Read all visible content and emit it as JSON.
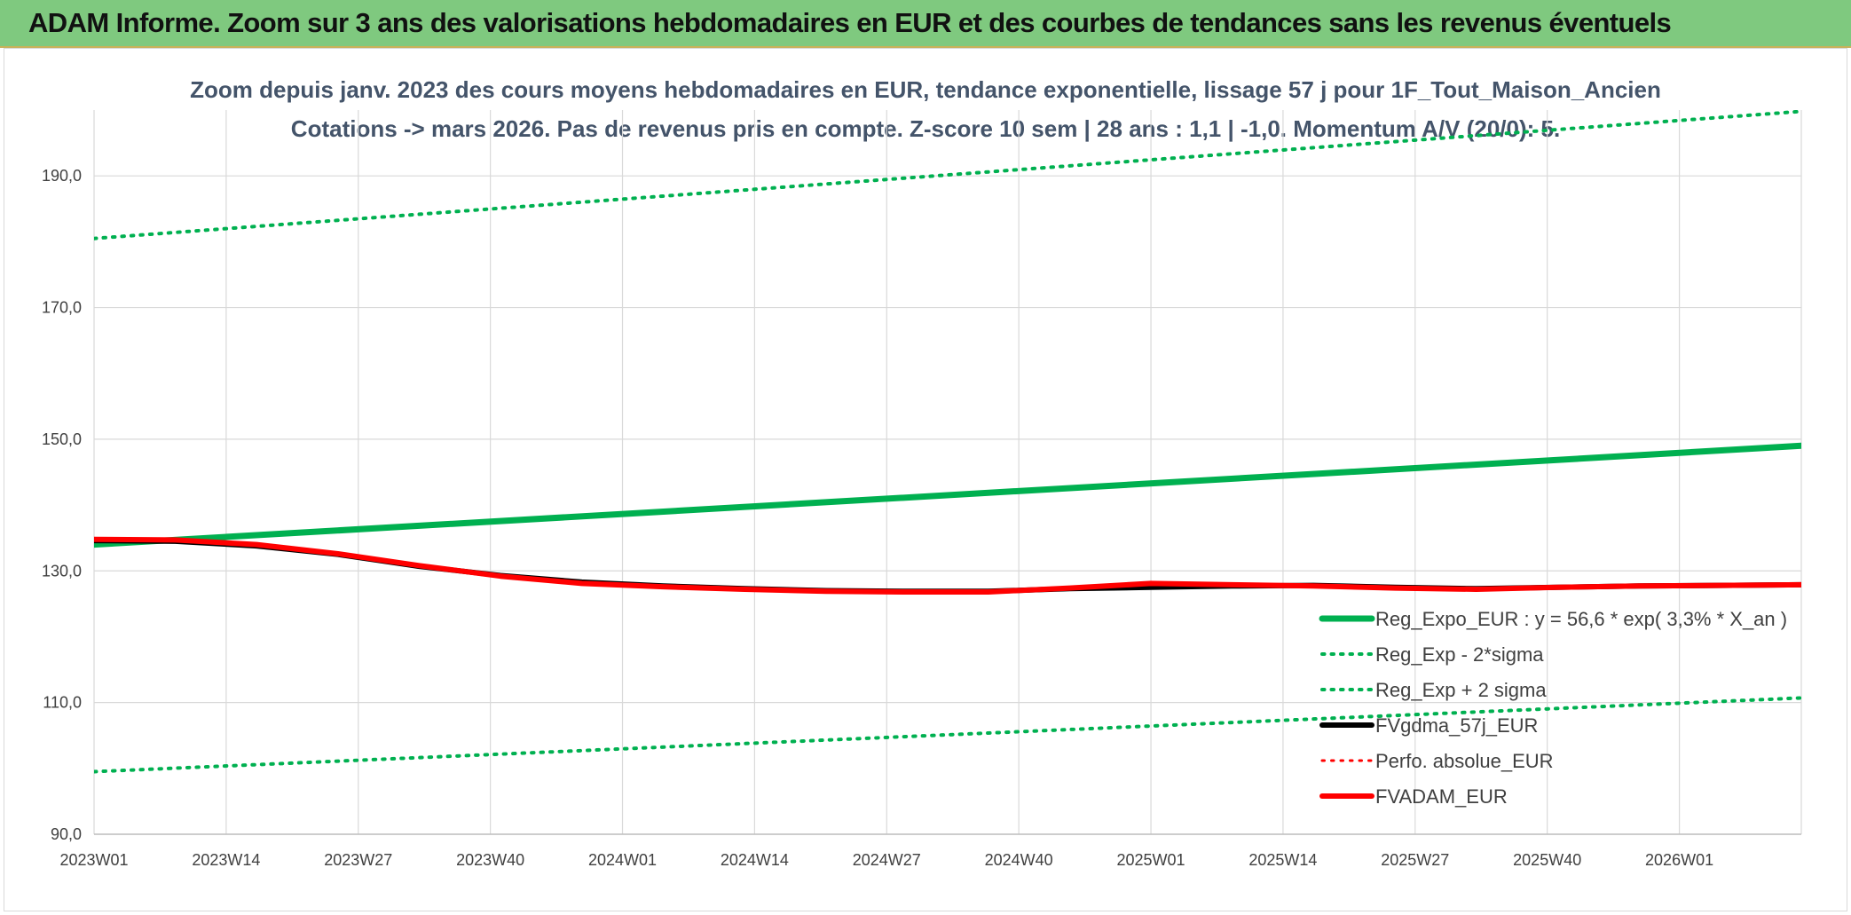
{
  "banner": {
    "title": "ADAM Informe. Zoom sur 3 ans des valorisations hebdomadaires en EUR et des courbes de tendances sans les revenus éventuels"
  },
  "chart_data": {
    "type": "line",
    "title_line1": "Zoom depuis janv. 2023 des cours moyens hebdomadaires en EUR, tendance exponentielle, lissage 57 j pour 1F_Tout_Maison_Ancien",
    "title_line2": "Cotations -> mars 2026. Pas de revenus pris en compte. Z-score 10 sem | 28 ans : 1,1 | -1,0. Momentum A/V (20/0): 5.",
    "x_tick_labels": [
      "2023W01",
      "2023W14",
      "2023W27",
      "2023W40",
      "2024W01",
      "2024W14",
      "2024W27",
      "2024W40",
      "2025W01",
      "2025W14",
      "2025W27",
      "2025W40",
      "2026W01"
    ],
    "x_range_weeks": [
      0,
      168
    ],
    "y_ticks": [
      90,
      110,
      130,
      150,
      170,
      190
    ],
    "y_tick_labels": [
      "90,0",
      "110,0",
      "130,0",
      "150,0",
      "170,0",
      "190,0"
    ],
    "ylim": [
      90,
      200
    ],
    "grid": true,
    "legend_position": "bottom-right",
    "colors": {
      "green": "#00b050",
      "black": "#000000",
      "red": "#ff0000",
      "grid": "#d9d9d9",
      "subtitle": "#44546a"
    },
    "series": [
      {
        "name": "Reg_Expo_EUR : y = 56,6 * exp( 3,3% *  X_an )",
        "style": "solid",
        "color": "#00b050",
        "x": [
          0,
          168
        ],
        "y": [
          134.0,
          149.0
        ]
      },
      {
        "name": "Reg_Exp - 2*sigma",
        "style": "dotted",
        "color": "#00b050",
        "x": [
          0,
          168
        ],
        "y": [
          99.5,
          110.7
        ]
      },
      {
        "name": "Reg_Exp + 2 sigma",
        "style": "dotted",
        "color": "#00b050",
        "x": [
          0,
          168
        ],
        "y": [
          180.5,
          199.8
        ]
      },
      {
        "name": "FVgdma_57j_EUR",
        "style": "solid",
        "color": "#000000",
        "x": [
          0,
          8,
          16,
          24,
          32,
          40,
          48,
          56,
          64,
          72,
          80,
          88,
          96,
          104,
          112,
          120,
          128,
          136,
          144,
          152,
          160,
          168
        ],
        "y": [
          134.6,
          134.5,
          133.8,
          132.5,
          130.7,
          129.3,
          128.3,
          127.7,
          127.3,
          127.0,
          126.9,
          126.9,
          127.3,
          127.5,
          127.7,
          127.8,
          127.5,
          127.3,
          127.5,
          127.7,
          127.8,
          127.9
        ]
      },
      {
        "name": "Perfo. absolue_EUR",
        "style": "dotted",
        "color": "#ff0000",
        "x": [
          0,
          8,
          16,
          24,
          32,
          40,
          48,
          56,
          64,
          72,
          80,
          88,
          96,
          104,
          112,
          120,
          128,
          136,
          144,
          152,
          160,
          168
        ],
        "y": [
          134.7,
          134.6,
          133.9,
          132.6,
          130.8,
          129.2,
          128.1,
          127.6,
          127.2,
          126.9,
          126.8,
          126.8,
          127.4,
          128.0,
          127.9,
          127.7,
          127.4,
          127.2,
          127.5,
          127.7,
          127.8,
          127.9
        ]
      },
      {
        "name": "FVADAM_EUR",
        "style": "solid",
        "color": "#ff0000",
        "x": [
          0,
          8,
          16,
          24,
          32,
          40,
          48,
          56,
          64,
          72,
          80,
          88,
          96,
          104,
          112,
          120,
          128,
          136,
          144,
          152,
          160,
          168
        ],
        "y": [
          134.8,
          134.7,
          134.0,
          132.6,
          130.8,
          129.2,
          128.1,
          127.6,
          127.2,
          126.9,
          126.8,
          126.8,
          127.4,
          128.1,
          127.9,
          127.7,
          127.4,
          127.2,
          127.5,
          127.7,
          127.8,
          127.9
        ]
      }
    ]
  }
}
